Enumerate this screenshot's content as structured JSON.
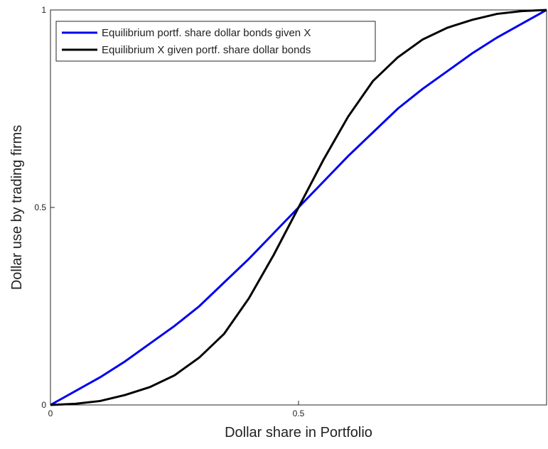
{
  "chart_data": {
    "type": "line",
    "xlabel": "Dollar share in Portfolio",
    "ylabel": "Dollar use by trading firms",
    "x": [
      0,
      0.05,
      0.1,
      0.15,
      0.2,
      0.25,
      0.3,
      0.35,
      0.4,
      0.45,
      0.5,
      0.55,
      0.6,
      0.65,
      0.7,
      0.75,
      0.8,
      0.85,
      0.9,
      0.95,
      1
    ],
    "series": [
      {
        "name": "Equilibrium portf. share dollar bonds given X",
        "color": "#0000ee",
        "values": [
          0,
          0.035,
          0.07,
          0.11,
          0.155,
          0.2,
          0.25,
          0.31,
          0.37,
          0.435,
          0.5,
          0.565,
          0.63,
          0.69,
          0.75,
          0.8,
          0.845,
          0.89,
          0.93,
          0.965,
          1
        ]
      },
      {
        "name": "Equilibrium X given portf. share dollar bonds",
        "color": "#000000",
        "values": [
          0,
          0.003,
          0.01,
          0.025,
          0.045,
          0.075,
          0.12,
          0.18,
          0.27,
          0.38,
          0.5,
          0.62,
          0.73,
          0.82,
          0.88,
          0.925,
          0.955,
          0.975,
          0.99,
          0.997,
          1
        ]
      }
    ],
    "xlim": [
      0,
      1
    ],
    "xticks": [
      0,
      0.5
    ],
    "ylim": [
      0,
      1
    ],
    "yticks": [
      0,
      0.5,
      1
    ],
    "legend": "upper-left"
  }
}
